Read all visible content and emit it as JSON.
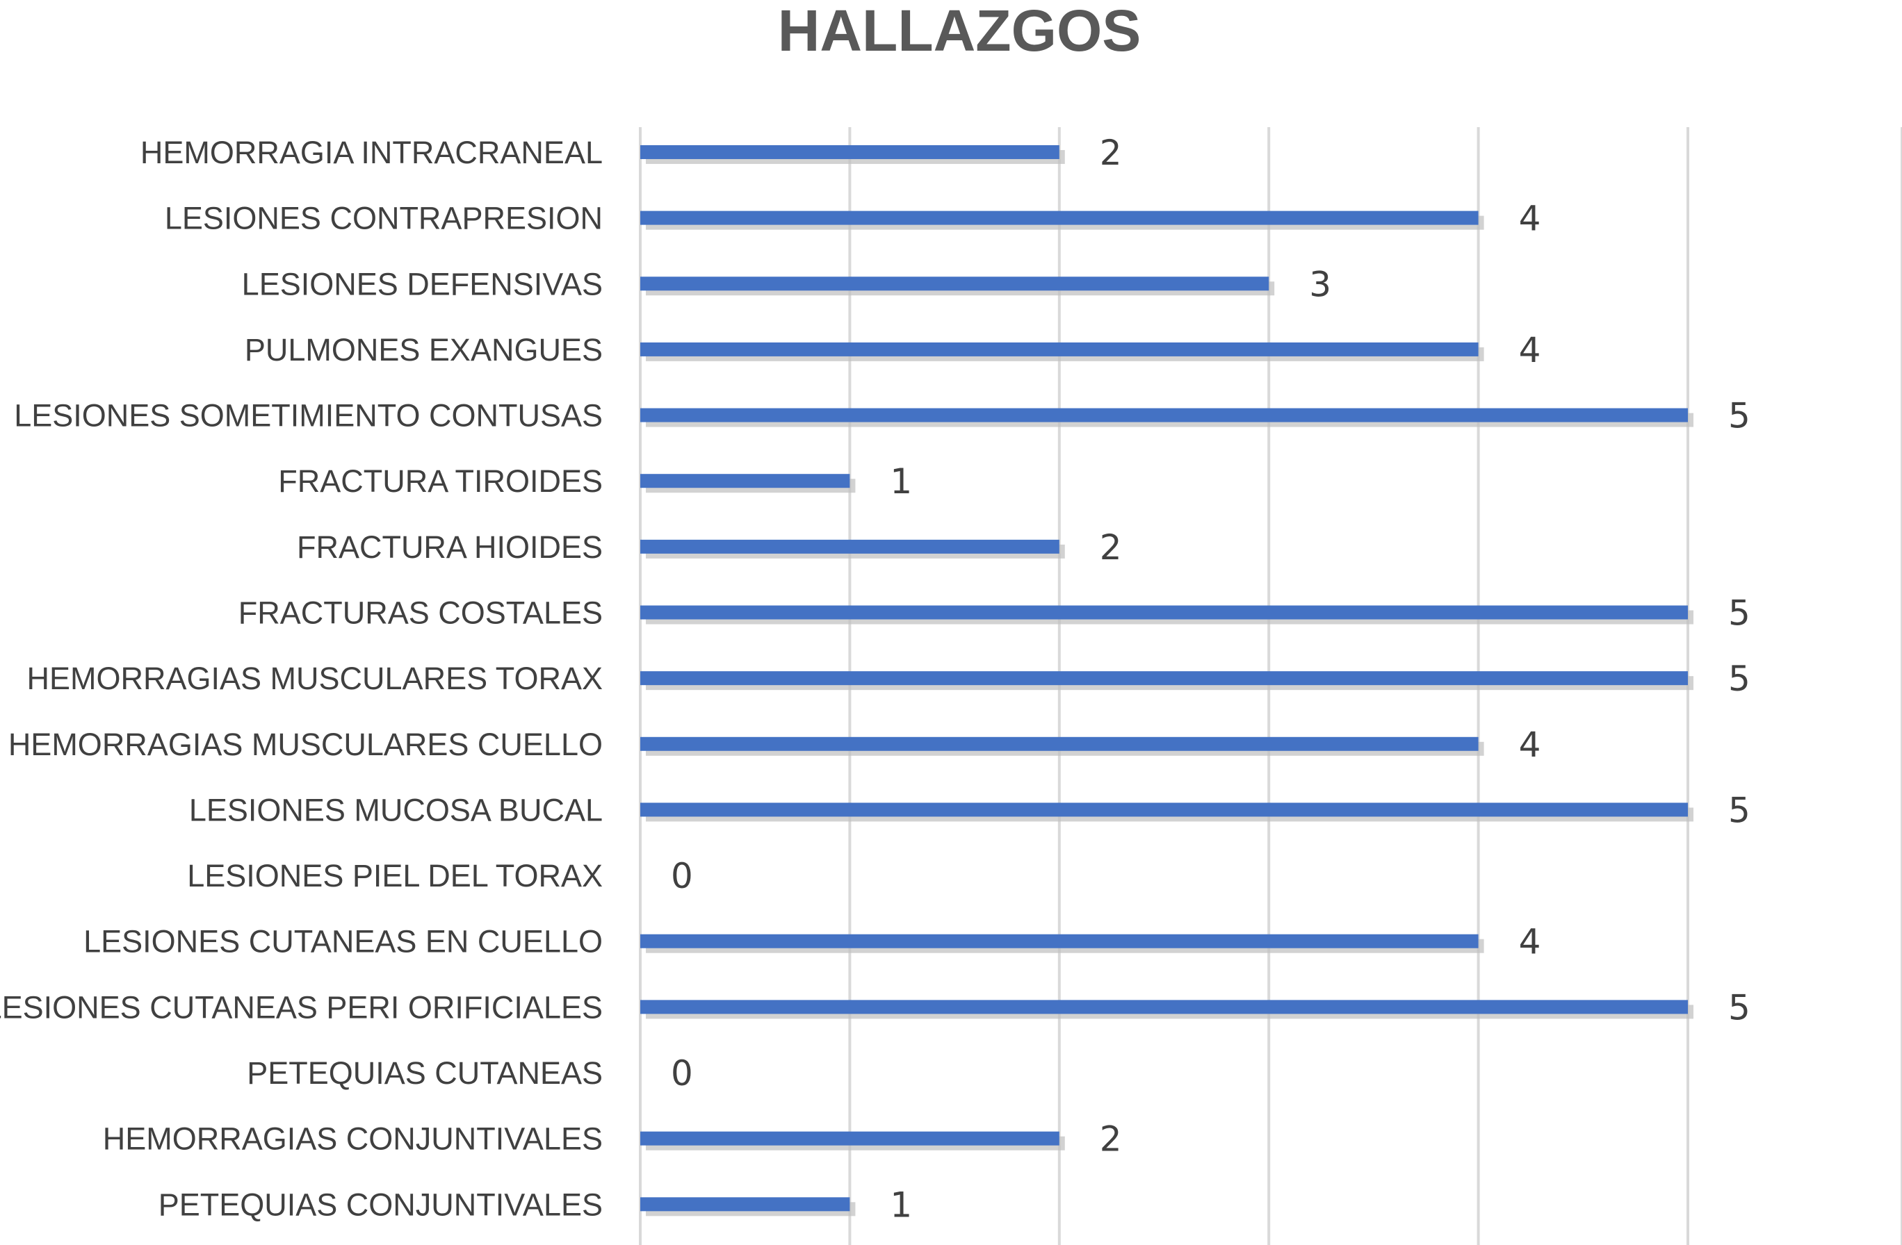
{
  "chart_data": {
    "type": "bar",
    "orientation": "horizontal",
    "title": "HALLAZGOS",
    "xlabel": "",
    "ylabel": "",
    "xlim": [
      0,
      5
    ],
    "grid": true,
    "legend": "none",
    "bar_color": "#4472c4",
    "categories": [
      "HEMORRAGIA INTRACRANEAL",
      "LESIONES CONTRAPRESION",
      "LESIONES DEFENSIVAS",
      "PULMONES EXANGUES",
      "LESIONES SOMETIMIENTO CONTUSAS",
      "FRACTURA TIROIDES",
      "FRACTURA HIOIDES",
      "FRACTURAS COSTALES",
      "HEMORRAGIAS MUSCULARES TORAX",
      "HEMORRAGIAS MUSCULARES CUELLO",
      "LESIONES MUCOSA BUCAL",
      "LESIONES PIEL DEL TORAX",
      "LESIONES CUTANEAS EN CUELLO",
      "LESIONES CUTANEAS PERI ORIFICIALES",
      "PETEQUIAS CUTANEAS",
      "HEMORRAGIAS CONJUNTIVALES",
      "PETEQUIAS  CONJUNTIVALES"
    ],
    "values": [
      2,
      4,
      3,
      4,
      5,
      1,
      2,
      5,
      5,
      4,
      5,
      0,
      4,
      5,
      0,
      2,
      1
    ]
  }
}
